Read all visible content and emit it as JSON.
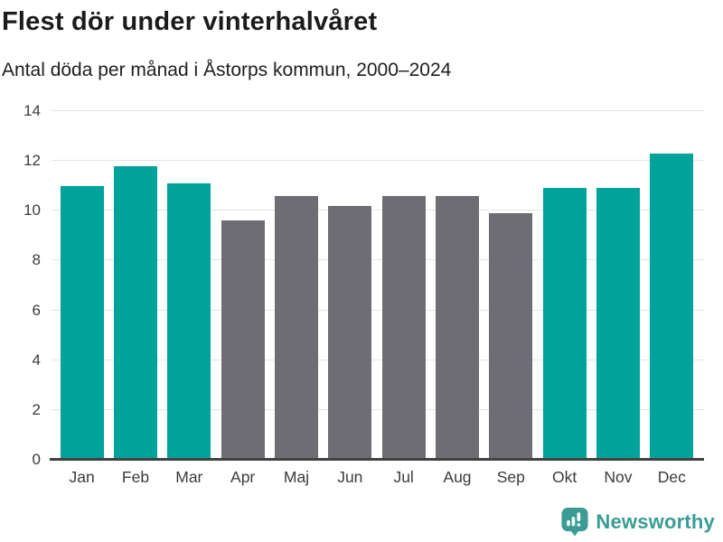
{
  "title": "Flest dör under vinterhalvåret",
  "subtitle": "Antal döda per månad i Åstorps kommun, 2000–2024",
  "chart_data": {
    "type": "bar",
    "title": "Flest dör under vinterhalvåret",
    "subtitle": "Antal döda per månad i Åstorps kommun, 2000–2024",
    "categories": [
      "Jan",
      "Feb",
      "Mar",
      "Apr",
      "Maj",
      "Jun",
      "Jul",
      "Aug",
      "Sep",
      "Okt",
      "Nov",
      "Dec"
    ],
    "values": [
      11.0,
      11.8,
      11.1,
      9.6,
      10.6,
      10.2,
      10.6,
      10.6,
      9.9,
      10.9,
      10.9,
      12.3
    ],
    "bar_color_keys": [
      "highlight",
      "highlight",
      "highlight",
      "muted",
      "muted",
      "muted",
      "muted",
      "muted",
      "muted",
      "highlight",
      "highlight",
      "highlight"
    ],
    "xlabel": "",
    "ylabel": "",
    "ylim": [
      0,
      14
    ],
    "yticks": [
      0,
      2,
      4,
      6,
      8,
      10,
      12,
      14
    ],
    "grid": true,
    "legend": "none",
    "colors": {
      "highlight": "#00A399",
      "muted": "#6E6D73",
      "gridline": "#e4e4e4",
      "axis_line": "#414141",
      "tick_text": "#3b3b3b"
    }
  },
  "footer": {
    "brand": "Newsworthy",
    "logo_color": "#3A9C94"
  }
}
